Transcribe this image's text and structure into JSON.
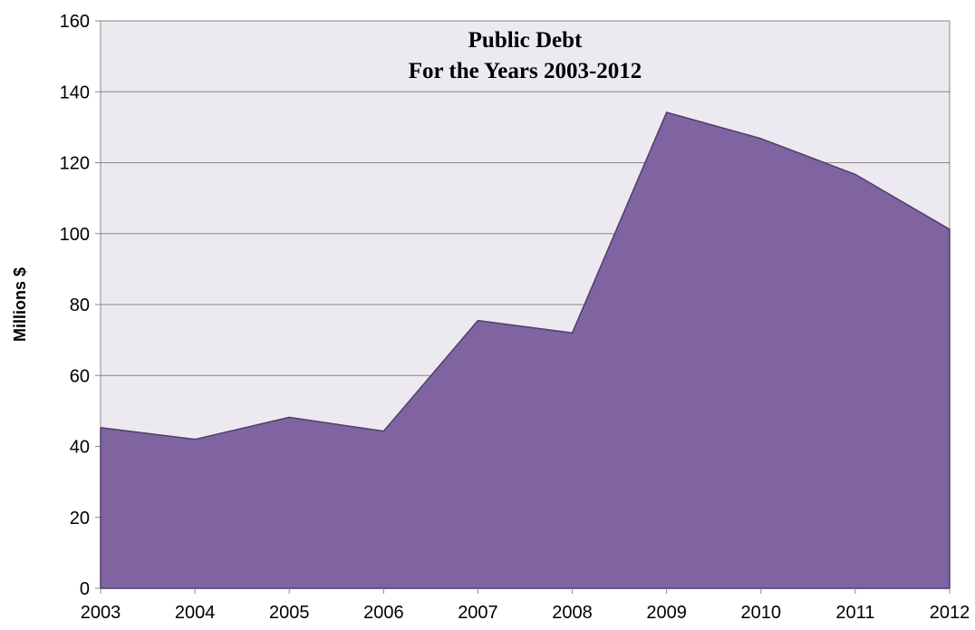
{
  "chart_data": {
    "type": "area",
    "title_lines": [
      "Public Debt",
      "For the Years 2003-2012"
    ],
    "xlabel": "",
    "ylabel": "Millions $",
    "x": [
      2003,
      2004,
      2005,
      2006,
      2007,
      2008,
      2009,
      2010,
      2011,
      2012
    ],
    "series": [
      {
        "values": [
          45.3,
          42.0,
          48.2,
          44.3,
          75.5,
          72.0,
          134.2,
          126.8,
          116.7,
          101.2
        ]
      }
    ],
    "ylim": [
      0,
      160
    ],
    "yticks": [
      0,
      20,
      40,
      60,
      80,
      100,
      120,
      140,
      160
    ],
    "grid": true,
    "legend": "none",
    "colors": {
      "fill": "#8064A2",
      "stroke": "#4E3D6B",
      "plot_background": "#ECE9F0",
      "gridline": "#888888"
    }
  }
}
